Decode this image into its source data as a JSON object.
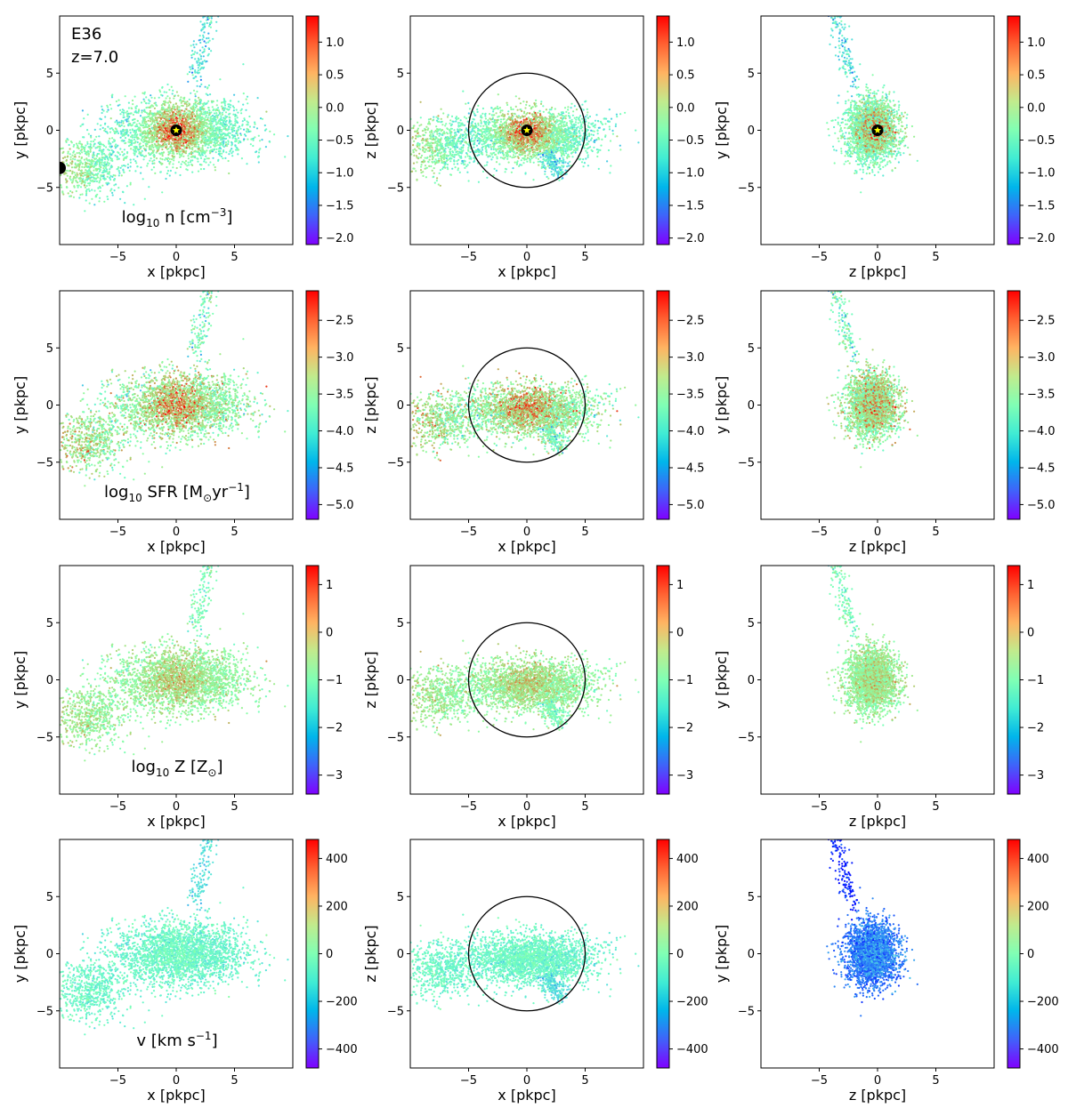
{
  "figure": {
    "title_label": "E36",
    "redshift_label": "z=7.0",
    "unit_axis": "pkpc"
  },
  "colormap": "rainbow",
  "chart_data": [
    {
      "type": "scatter",
      "quantity": "log10 n",
      "row_label": {
        "main": "log",
        "sub": "10",
        "rest": " n [cm",
        "sup": "−3",
        "end": "]"
      },
      "clim": [
        -2.1,
        1.4
      ],
      "colorbar_ticks": [
        "-2.0",
        "-1.5",
        "-1.0",
        "-0.5",
        "0.0",
        "0.5",
        "1.0"
      ],
      "colorbar_tick_values": [
        -2.0,
        -1.5,
        -1.0,
        -0.5,
        0.0,
        0.5,
        1.0
      ],
      "center_value": 1.2,
      "edge_value": -0.6,
      "noise": 0.28,
      "view3_shift": 0.0
    },
    {
      "type": "scatter",
      "quantity": "log10 SFR",
      "row_label": {
        "main": "log",
        "sub": "10",
        "rest": " SFR [M",
        "subsym": "⊙",
        "rest2": "yr",
        "sup": "−1",
        "end": "]"
      },
      "clim": [
        -5.2,
        -2.1
      ],
      "colorbar_ticks": [
        "-5.0",
        "-4.5",
        "-4.0",
        "-3.5",
        "-3.0",
        "-2.5"
      ],
      "colorbar_tick_values": [
        -5.0,
        -4.5,
        -4.0,
        -3.5,
        -3.0,
        -2.5
      ],
      "center_value": -2.6,
      "edge_value": -3.5,
      "noise": 0.35,
      "view3_shift": 0.0
    },
    {
      "type": "scatter",
      "quantity": "log10 Z",
      "row_label": {
        "main": "log",
        "sub": "10",
        "rest": " Z [Z",
        "subsym": "⊙",
        "end": "]"
      },
      "clim": [
        -3.4,
        1.4
      ],
      "colorbar_ticks": [
        "-3",
        "-2",
        "-1",
        "0",
        "1"
      ],
      "colorbar_tick_values": [
        -3,
        -2,
        -1,
        0,
        1
      ],
      "center_value": 0.1,
      "edge_value": -0.7,
      "noise": 0.35,
      "view3_shift": 0.0
    },
    {
      "type": "scatter",
      "quantity": "v",
      "row_label": {
        "main": "v [km s",
        "sup": "−1",
        "end": "]"
      },
      "clim": [
        -480,
        480
      ],
      "colorbar_ticks": [
        "-400",
        "-200",
        "0",
        "200",
        "400"
      ],
      "colorbar_tick_values": [
        -400,
        -200,
        0,
        200,
        400
      ],
      "center_value": -40,
      "edge_value": -80,
      "noise": 45,
      "view3_shift": -280
    }
  ],
  "panels": {
    "xlim": [
      -10,
      10
    ],
    "ylim": [
      -10,
      10
    ],
    "xticks": [
      -5,
      0,
      5
    ],
    "yticks": [
      -5,
      0,
      5
    ],
    "xtick_labels": [
      "−5",
      "0",
      "5"
    ],
    "ytick_labels": [
      "−5",
      "0",
      "5"
    ],
    "columns": [
      {
        "xlabel": "x [pkpc]",
        "ylabel": "y [pkpc]",
        "circle_radius": null
      },
      {
        "xlabel": "x [pkpc]",
        "ylabel": "z [pkpc]",
        "circle_radius": 5
      },
      {
        "xlabel": "z [pkpc]",
        "ylabel": "y [pkpc]",
        "circle_radius": null
      }
    ]
  },
  "markers": {
    "star_center": [
      0,
      0
    ],
    "star_color": "#ffff00",
    "neighbor_blob": [
      -10,
      -3.3
    ]
  }
}
